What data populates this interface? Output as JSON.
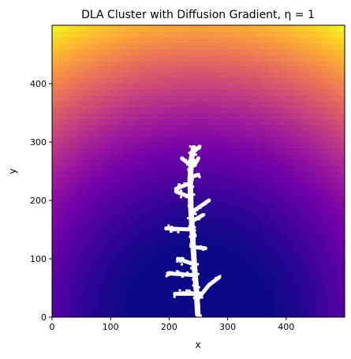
{
  "chart_data": {
    "type": "heatmap",
    "title": "DLA Cluster with Diffusion Gradient, η = 1",
    "xlabel": "x",
    "ylabel": "y",
    "xlim": [
      0,
      500
    ],
    "ylim": [
      0,
      500
    ],
    "x_ticks": [
      "0",
      "100",
      "200",
      "300",
      "400"
    ],
    "y_ticks": [
      "0",
      "100",
      "200",
      "300",
      "400"
    ],
    "colormap": "plasma",
    "colormap_stops": [
      "#0d0887",
      "#46039f",
      "#7201a8",
      "#9c179e",
      "#bd3786",
      "#d8576b",
      "#ed7953",
      "#fb9f3a",
      "#fdca26",
      "#f0f921"
    ],
    "cluster_color": "#ffffff",
    "seed": [
      250,
      0
    ],
    "cluster_extent": {
      "x": [
        190,
        290
      ],
      "y": [
        0,
        290
      ]
    },
    "cluster_trunk": [
      [
        249,
        5
      ],
      [
        247,
        40
      ],
      [
        243,
        90
      ],
      [
        240,
        140
      ],
      [
        237,
        190
      ],
      [
        236,
        235
      ],
      [
        238,
        270
      ],
      [
        242,
        290
      ]
    ],
    "cluster_branches": [
      {
        "from": [
          248,
          30
        ],
        "to": [
          268,
          55
        ]
      },
      {
        "from": [
          268,
          55
        ],
        "to": [
          285,
          68
        ]
      },
      {
        "from": [
          246,
          40
        ],
        "to": [
          210,
          40
        ]
      },
      {
        "from": [
          244,
          72
        ],
        "to": [
          198,
          75
        ]
      },
      {
        "from": [
          244,
          90
        ],
        "to": [
          215,
          100
        ]
      },
      {
        "from": [
          242,
          120
        ],
        "to": [
          262,
          118
        ]
      },
      {
        "from": [
          241,
          150
        ],
        "to": [
          195,
          152
        ]
      },
      {
        "from": [
          240,
          165
        ],
        "to": [
          258,
          175
        ]
      },
      {
        "from": [
          239,
          180
        ],
        "to": [
          268,
          200
        ]
      },
      {
        "from": [
          238,
          205
        ],
        "to": [
          212,
          215
        ]
      },
      {
        "from": [
          237,
          230
        ],
        "to": [
          212,
          220
        ]
      },
      {
        "from": [
          237,
          240
        ],
        "to": [
          250,
          244
        ]
      },
      {
        "from": [
          237,
          260
        ],
        "to": [
          222,
          272
        ]
      },
      {
        "from": [
          238,
          280
        ],
        "to": [
          252,
          292
        ]
      },
      {
        "from": [
          243,
          260
        ],
        "to": [
          250,
          272
        ]
      }
    ]
  }
}
